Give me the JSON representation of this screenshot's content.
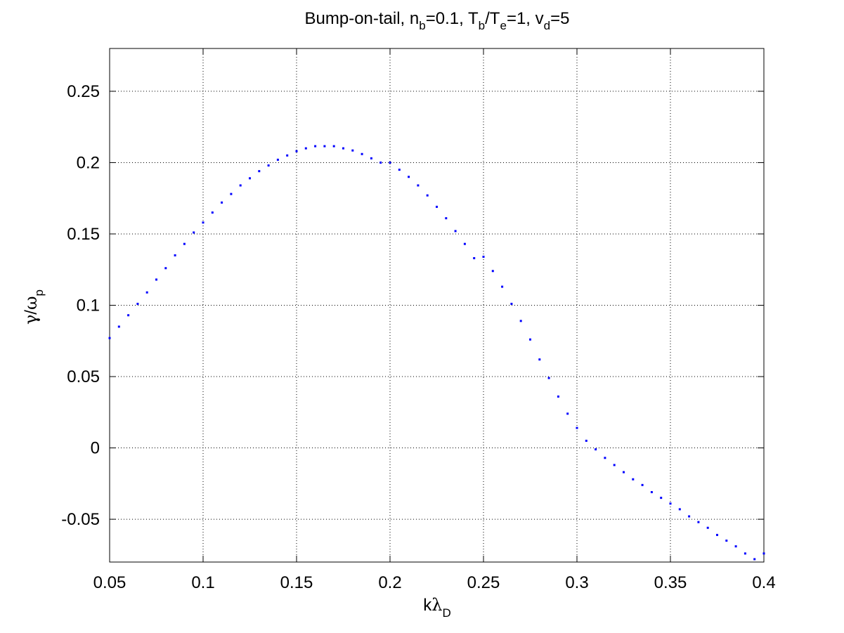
{
  "chart_data": {
    "type": "scatter",
    "title": {
      "prefix": "Bump-on-tail, n",
      "nb_sub": "b",
      "nb_val": "=0.1, T",
      "tb_sub": "b",
      "slash": "/T",
      "te_sub": "e",
      "te_val": "=1, v",
      "vd_sub": "d",
      "vd_val": "=5"
    },
    "xlabel": {
      "base": "k",
      "symbol": "λ",
      "sub": "D"
    },
    "ylabel": {
      "symbol1": "γ",
      "slash": "/",
      "symbol2": "ω",
      "sub": "p"
    },
    "xlim": [
      0.05,
      0.4
    ],
    "ylim": [
      -0.08,
      0.28
    ],
    "grid": true,
    "marker_color": "#0000ff",
    "xticks": [
      {
        "value": 0.05,
        "label": "0.05"
      },
      {
        "value": 0.1,
        "label": "0.1"
      },
      {
        "value": 0.15,
        "label": "0.15"
      },
      {
        "value": 0.2,
        "label": "0.2"
      },
      {
        "value": 0.25,
        "label": "0.25"
      },
      {
        "value": 0.3,
        "label": "0.3"
      },
      {
        "value": 0.35,
        "label": "0.35"
      },
      {
        "value": 0.4,
        "label": "0.4"
      }
    ],
    "yticks": [
      {
        "value": -0.05,
        "label": "-0.05"
      },
      {
        "value": 0,
        "label": "0"
      },
      {
        "value": 0.05,
        "label": "0.05"
      },
      {
        "value": 0.1,
        "label": "0.1"
      },
      {
        "value": 0.15,
        "label": "0.15"
      },
      {
        "value": 0.2,
        "label": "0.2"
      },
      {
        "value": 0.25,
        "label": "0.25"
      }
    ],
    "series": [
      {
        "x": [
          0.05,
          0.055,
          0.06,
          0.065,
          0.07,
          0.075,
          0.08,
          0.085,
          0.09,
          0.095,
          0.1,
          0.105,
          0.11,
          0.115,
          0.12,
          0.125,
          0.13,
          0.135,
          0.14,
          0.145,
          0.15,
          0.155,
          0.16,
          0.165,
          0.17,
          0.175,
          0.18,
          0.185,
          0.19,
          0.195,
          0.2,
          0.205,
          0.21,
          0.215,
          0.22,
          0.225,
          0.23,
          0.235,
          0.24,
          0.245,
          0.25,
          0.255,
          0.26,
          0.265,
          0.27,
          0.275,
          0.28,
          0.285,
          0.29,
          0.295,
          0.3,
          0.305,
          0.31,
          0.315,
          0.32,
          0.325,
          0.33,
          0.335,
          0.34,
          0.345,
          0.35,
          0.355,
          0.36,
          0.365,
          0.37,
          0.375,
          0.38,
          0.385,
          0.39,
          0.395,
          0.4
        ],
        "y": [
          0.077,
          0.085,
          0.093,
          0.101,
          0.109,
          0.118,
          0.126,
          0.135,
          0.143,
          0.151,
          0.158,
          0.165,
          0.172,
          0.178,
          0.184,
          0.189,
          0.194,
          0.198,
          0.202,
          0.205,
          0.208,
          0.21,
          0.2115,
          0.2115,
          0.2115,
          0.21,
          0.2085,
          0.206,
          0.203,
          0.2,
          0.2,
          0.195,
          0.19,
          0.184,
          0.177,
          0.169,
          0.161,
          0.152,
          0.143,
          0.133,
          0.134,
          0.124,
          0.113,
          0.101,
          0.089,
          0.076,
          0.062,
          0.049,
          0.036,
          0.024,
          0.014,
          0.005,
          -0.001,
          -0.007,
          -0.012,
          -0.017,
          -0.022,
          -0.026,
          -0.031,
          -0.035,
          -0.039,
          -0.043,
          -0.048,
          -0.052,
          -0.056,
          -0.061,
          -0.065,
          -0.069,
          -0.074,
          -0.078,
          -0.074
        ]
      }
    ]
  }
}
